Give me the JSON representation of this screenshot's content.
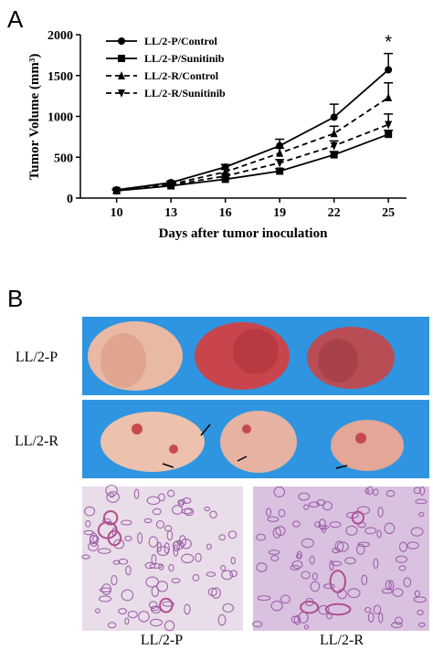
{
  "panel_a": {
    "label": "A"
  },
  "chart_data": {
    "type": "line",
    "xlabel": "Days after tumor inoculation",
    "ylabel": "Tumor Volume (mm³)",
    "x": [
      10,
      13,
      16,
      19,
      22,
      25
    ],
    "xlim": [
      8,
      26
    ],
    "xticks": [
      10,
      13,
      16,
      19,
      22,
      25
    ],
    "ylim": [
      0,
      2000
    ],
    "yticks": [
      0,
      500,
      1000,
      1500,
      2000
    ],
    "legend": "upper left",
    "annotation": "*",
    "series": [
      {
        "name": "LL/2-P/Control",
        "color": "#000000",
        "marker": "circle",
        "line_style": "solid",
        "values": [
          100,
          190,
          380,
          640,
          990,
          1570
        ],
        "errors": [
          10,
          20,
          30,
          80,
          160,
          200
        ]
      },
      {
        "name": "LL/2-P/Sunitinib",
        "color": "#000000",
        "marker": "square",
        "line_style": "solid",
        "values": [
          90,
          150,
          230,
          330,
          530,
          780
        ],
        "errors": [
          10,
          15,
          20,
          30,
          40,
          50
        ]
      },
      {
        "name": "LL/2-R/Control",
        "color": "#000000",
        "marker": "triangle",
        "line_style": "dashed",
        "values": [
          95,
          170,
          320,
          550,
          790,
          1230
        ],
        "errors": [
          10,
          20,
          30,
          60,
          90,
          180
        ]
      },
      {
        "name": "LL/2-R/Sunitinib",
        "color": "#000000",
        "marker": "triangle-down",
        "line_style": "dashed",
        "values": [
          92,
          160,
          270,
          430,
          640,
          900
        ],
        "errors": [
          10,
          15,
          25,
          40,
          60,
          130
        ]
      }
    ]
  },
  "panel_b": {
    "label": "B",
    "row_labels": [
      "LL/2-P",
      "LL/2-R"
    ],
    "histology_labels": [
      "LL/2-P",
      "LL/2-R"
    ]
  }
}
